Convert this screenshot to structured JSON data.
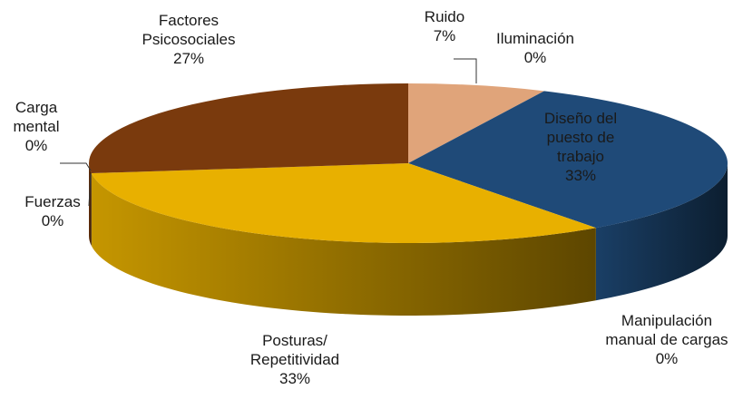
{
  "chart_data": {
    "type": "pie",
    "categories": [
      "Ruido",
      "Iluminación",
      "Diseño del puesto de trabajo",
      "Manipulación manual de cargas",
      "Posturas/ Repetitividad",
      "Fuerzas",
      "Carga mental",
      "Factores Psicosociales"
    ],
    "values": [
      7,
      0,
      33,
      0,
      33,
      0,
      0,
      27
    ],
    "value_labels": [
      "7%",
      "0%",
      "33%",
      "0%",
      "33%",
      "0%",
      "0%",
      "27%"
    ],
    "colors": [
      "#e0a47a",
      "#c8c8c8",
      "#1f4a78",
      "#0f2540",
      "#e8b000",
      "#d0a000",
      "#6a3010",
      "#7a3a0d"
    ]
  }
}
